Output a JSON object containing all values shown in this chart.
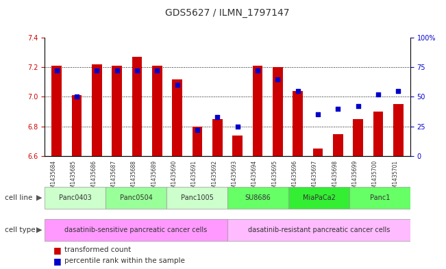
{
  "title": "GDS5627 / ILMN_1797147",
  "samples": [
    "GSM1435684",
    "GSM1435685",
    "GSM1435686",
    "GSM1435687",
    "GSM1435688",
    "GSM1435689",
    "GSM1435690",
    "GSM1435691",
    "GSM1435692",
    "GSM1435693",
    "GSM1435694",
    "GSM1435695",
    "GSM1435696",
    "GSM1435697",
    "GSM1435698",
    "GSM1435699",
    "GSM1435700",
    "GSM1435701"
  ],
  "bar_values": [
    7.21,
    7.01,
    7.22,
    7.21,
    7.27,
    7.21,
    7.12,
    6.8,
    6.85,
    6.74,
    7.21,
    7.2,
    7.04,
    6.65,
    6.75,
    6.85,
    6.9,
    6.95
  ],
  "percentile_values": [
    72,
    50,
    72,
    72,
    72,
    72,
    60,
    22,
    33,
    25,
    72,
    65,
    55,
    35,
    40,
    42,
    52,
    55
  ],
  "ylim_left": [
    6.6,
    7.4
  ],
  "ylim_right": [
    0,
    100
  ],
  "yticks_left": [
    6.6,
    6.8,
    7.0,
    7.2,
    7.4
  ],
  "yticks_right": [
    0,
    25,
    50,
    75,
    100
  ],
  "bar_color": "#cc0000",
  "dot_color": "#0000cc",
  "cell_lines": [
    {
      "label": "Panc0403",
      "start": 0,
      "end": 3,
      "color": "#ccffcc"
    },
    {
      "label": "Panc0504",
      "start": 3,
      "end": 6,
      "color": "#99ff99"
    },
    {
      "label": "Panc1005",
      "start": 6,
      "end": 9,
      "color": "#ccffcc"
    },
    {
      "label": "SU8686",
      "start": 9,
      "end": 12,
      "color": "#66ff66"
    },
    {
      "label": "MiaPaCa2",
      "start": 12,
      "end": 15,
      "color": "#33ee33"
    },
    {
      "label": "Panc1",
      "start": 15,
      "end": 18,
      "color": "#66ff66"
    }
  ],
  "cell_type_sensitive": {
    "label": "dasatinib-sensitive pancreatic cancer cells",
    "start": 0,
    "end": 9,
    "color": "#ff99ff"
  },
  "cell_type_resistant": {
    "label": "dasatinib-resistant pancreatic cancer cells",
    "start": 9,
    "end": 18,
    "color": "#ffbbff"
  },
  "legend_bar": "transformed count",
  "legend_dot": "percentile rank within the sample",
  "cell_line_label": "cell line",
  "cell_type_label": "cell type",
  "xlabel_color": "#cc0000",
  "right_axis_color": "#0000cc",
  "grid_color": "#000000",
  "background_color": "#ffffff",
  "tick_label_color_left": "#cc0000",
  "tick_label_color_right": "#0000cc"
}
